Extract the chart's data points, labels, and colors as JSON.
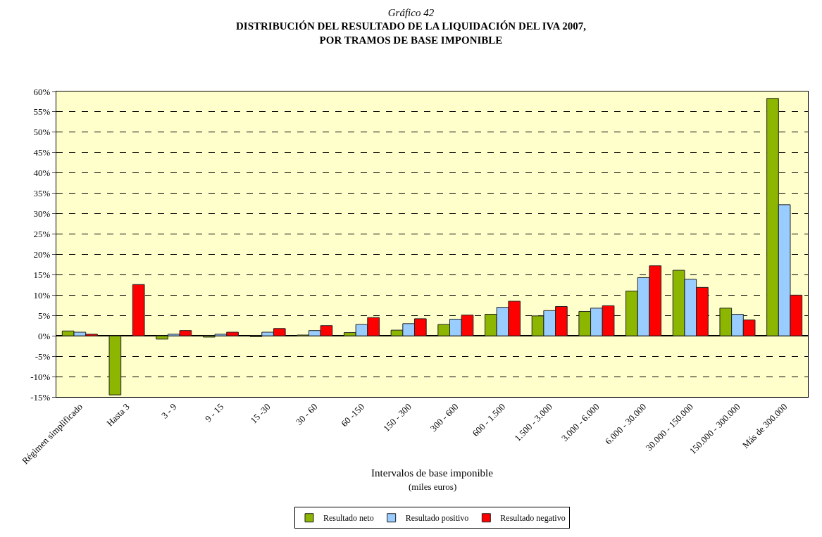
{
  "chart_data": {
    "type": "bar",
    "title": "Gráfico 42",
    "subtitle": "DISTRIBUCIÓN DEL RESULTADO DE LA LIQUIDACIÓN DEL IVA 2007,\nPOR TRAMOS DE BASE IMPONIBLE",
    "xlabel": "Intervalos de base imponible",
    "annotations": [
      "(miles euros)"
    ],
    "categories": [
      "Régimen simplificado",
      "Hasta 3",
      "3 - 9",
      "9 - 15",
      "15 -30",
      "30 - 60",
      "60 -150",
      "150 - 300",
      "300 - 600",
      "600 - 1.500",
      "1.500 - 3.000",
      "3.000 - 6.000",
      "6.000 - 30.000",
      "30.000 - 150.000",
      "150.000 - 300.000",
      "Más de 300.000"
    ],
    "series": [
      {
        "name": "Resultado neto",
        "color": "#8db600",
        "values": [
          1.2,
          -14.5,
          -0.8,
          -0.3,
          -0.2,
          0.2,
          0.8,
          1.4,
          2.8,
          5.3,
          4.9,
          6.0,
          11.0,
          16.1,
          6.8,
          58.3
        ]
      },
      {
        "name": "Resultado positivo",
        "color": "#99ccff",
        "values": [
          0.9,
          null,
          0.4,
          0.4,
          0.9,
          1.3,
          2.8,
          3.0,
          4.1,
          7.0,
          6.2,
          6.8,
          14.3,
          13.9,
          5.3,
          32.2
        ]
      },
      {
        "name": "Resultado negativo",
        "color": "#ff0000",
        "values": [
          0.4,
          12.6,
          1.3,
          0.9,
          1.8,
          2.5,
          4.5,
          4.2,
          5.1,
          8.5,
          7.2,
          7.4,
          17.2,
          11.9,
          3.9,
          10.0
        ]
      }
    ],
    "ylim": [
      -15,
      60
    ],
    "yticks": [
      {
        "value": -15,
        "label": "-15%"
      },
      {
        "value": -10,
        "label": "-10%"
      },
      {
        "value": -5,
        "label": "-5%"
      },
      {
        "value": 0,
        "label": "0%"
      },
      {
        "value": 5,
        "label": "5%"
      },
      {
        "value": 10,
        "label": "10%"
      },
      {
        "value": 15,
        "label": "15%"
      },
      {
        "value": 20,
        "label": "20%"
      },
      {
        "value": 25,
        "label": "25%"
      },
      {
        "value": 30,
        "label": "30%"
      },
      {
        "value": 35,
        "label": "35%"
      },
      {
        "value": 40,
        "label": "40%"
      },
      {
        "value": 45,
        "label": "45%"
      },
      {
        "value": 50,
        "label": "50%"
      },
      {
        "value": 55,
        "label": "55%"
      },
      {
        "value": 60,
        "label": "60%"
      }
    ],
    "grid": "y",
    "legend": "bottom"
  }
}
